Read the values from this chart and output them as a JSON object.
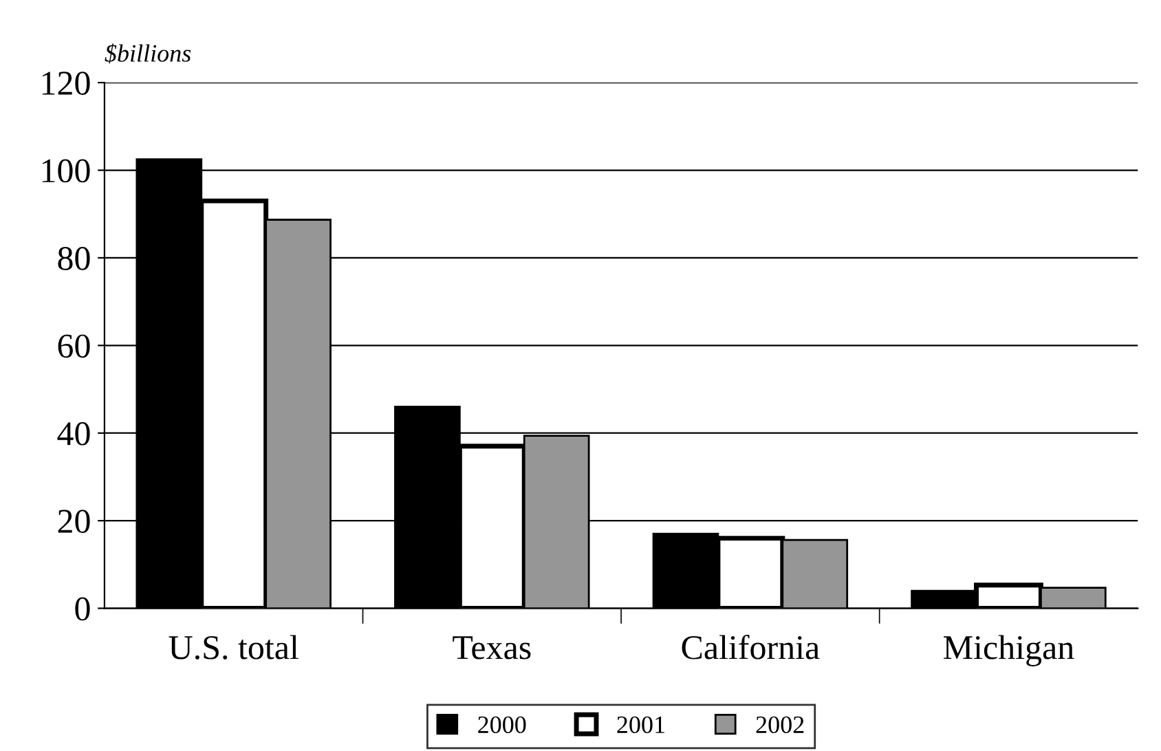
{
  "chart_data": {
    "type": "bar",
    "ylabel": "$billions",
    "categories": [
      "U.S. total",
      "Texas",
      "California",
      "Michigan"
    ],
    "series": [
      {
        "name": "2000",
        "color": "#000000",
        "values": [
          102.5,
          46,
          17,
          4
        ]
      },
      {
        "name": "2001",
        "color": "#ffffff",
        "values": [
          93,
          37,
          16,
          5.3
        ]
      },
      {
        "name": "2002",
        "color": "#969696",
        "values": [
          88.7,
          39.4,
          15.6,
          4.7
        ]
      }
    ],
    "ylim": [
      0,
      120
    ],
    "yticks": [
      0,
      20,
      40,
      60,
      80,
      100,
      120
    ],
    "grid": "y",
    "legend": "bottom"
  }
}
